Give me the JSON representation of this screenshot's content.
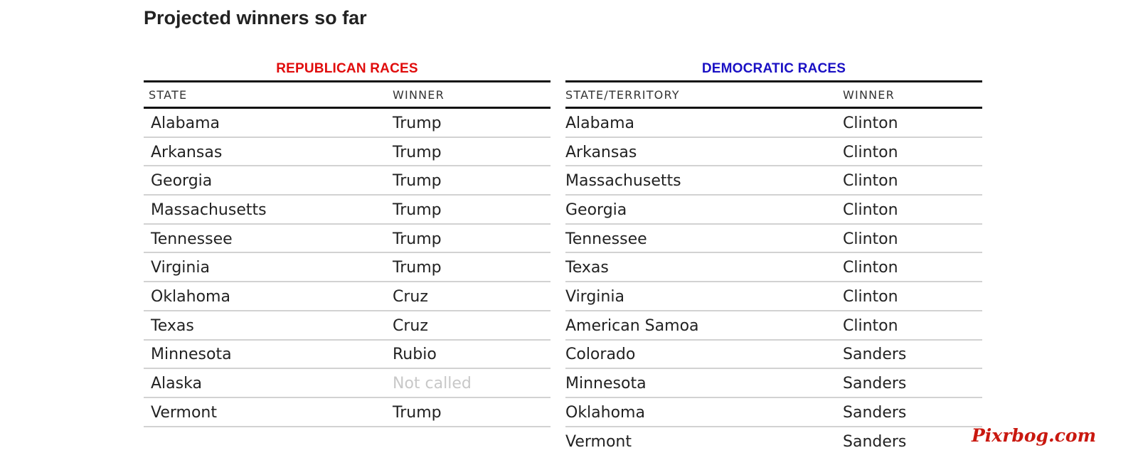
{
  "title": "Projected winners so far",
  "republican": {
    "heading": "REPUBLICAN RACES",
    "col_state": "STATE",
    "col_winner": "WINNER",
    "rows": [
      {
        "state": "Alabama",
        "winner": "Trump"
      },
      {
        "state": "Arkansas",
        "winner": "Trump"
      },
      {
        "state": "Georgia",
        "winner": "Trump"
      },
      {
        "state": "Massachusetts",
        "winner": "Trump"
      },
      {
        "state": "Tennessee",
        "winner": "Trump"
      },
      {
        "state": "Virginia",
        "winner": "Trump"
      },
      {
        "state": "Oklahoma",
        "winner": "Cruz"
      },
      {
        "state": "Texas",
        "winner": "Cruz"
      },
      {
        "state": "Minnesota",
        "winner": "Rubio"
      },
      {
        "state": "Alaska",
        "winner": "Not called"
      },
      {
        "state": "Vermont",
        "winner": "Trump"
      }
    ]
  },
  "democratic": {
    "heading": "DEMOCRATIC RACES",
    "col_state": "STATE/TERRITORY",
    "col_winner": "WINNER",
    "rows": [
      {
        "state": "Alabama",
        "winner": "Clinton"
      },
      {
        "state": "Arkansas",
        "winner": "Clinton"
      },
      {
        "state": "Massachusetts",
        "winner": "Clinton"
      },
      {
        "state": "Georgia",
        "winner": "Clinton"
      },
      {
        "state": "Tennessee",
        "winner": "Clinton"
      },
      {
        "state": "Texas",
        "winner": "Clinton"
      },
      {
        "state": "Virginia",
        "winner": "Clinton"
      },
      {
        "state": "American Samoa",
        "winner": "Clinton"
      },
      {
        "state": "Colorado",
        "winner": "Sanders"
      },
      {
        "state": "Minnesota",
        "winner": "Sanders"
      },
      {
        "state": "Oklahoma",
        "winner": "Sanders"
      },
      {
        "state": "Vermont",
        "winner": "Sanders"
      }
    ]
  },
  "colors": {
    "republican": "#e00b0b",
    "democratic": "#1a10c4",
    "not_called": "#c8c8c8"
  },
  "watermark": "Pixrbog.com"
}
